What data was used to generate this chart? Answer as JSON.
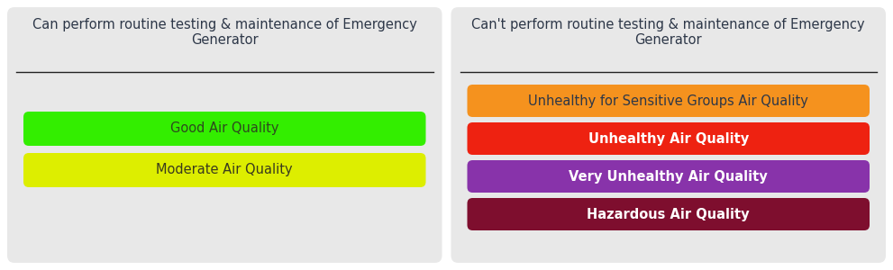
{
  "panel_bg": "#e8e8e8",
  "figure_bg": "#ffffff",
  "title_color": "#2d3748",
  "divider_color": "#222222",
  "left_title": "Can perform routine testing & maintenance of Emergency\nGenerator",
  "right_title": "Can't perform routine testing & maintenance of Emergency\nGenerator",
  "left_bars": [
    {
      "label": "Good Air Quality",
      "color": "#33ee00",
      "text_color": "#2d4a1e",
      "bold": false
    },
    {
      "label": "Moderate Air Quality",
      "color": "#ddee00",
      "text_color": "#3a3a1e",
      "bold": false
    }
  ],
  "right_bars": [
    {
      "label": "Unhealthy for Sensitive Groups Air Quality",
      "color": "#f5921e",
      "text_color": "#2d3748",
      "bold": false
    },
    {
      "label": "Unhealthy Air Quality",
      "color": "#ee2211",
      "text_color": "#ffffff",
      "bold": true
    },
    {
      "label": "Very Unhealthy Air Quality",
      "color": "#8833aa",
      "text_color": "#ffffff",
      "bold": true
    },
    {
      "label": "Hazardous Air Quality",
      "color": "#7e0e2e",
      "text_color": "#ffffff",
      "bold": true
    }
  ],
  "title_fontsize": 10.5,
  "bar_fontsize": 10.5
}
